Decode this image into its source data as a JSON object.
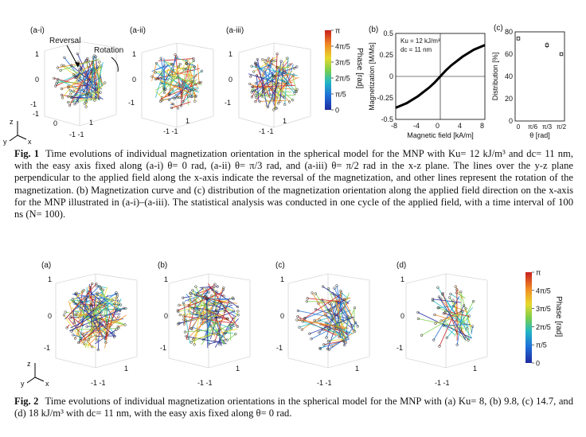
{
  "fig1": {
    "panels": [
      {
        "label": "(a-i)",
        "annotations": [
          "Reversal",
          "Rotation"
        ]
      },
      {
        "label": "(a-ii)"
      },
      {
        "label": "(a-iii)"
      }
    ],
    "axis_ticks": {
      "top": "1",
      "mid": "0",
      "bottom": "-1",
      "x_left": "-1",
      "x_right": "1",
      "floor_mid": "0",
      "floor_neg": "-1 -1"
    },
    "axis_letters": {
      "z": "z",
      "y": "y",
      "x": "x"
    },
    "colorbar": {
      "title": "Phase [rad]",
      "ticks": [
        "π",
        "4π/5",
        "3π/5",
        "2π/5",
        "π/5",
        "0"
      ]
    },
    "caption": {
      "label": "Fig. 1",
      "text": "Time evolutions of individual magnetization orientation in the spherical model for the MNP with Ku= 12 kJ/m³ and dc= 11 nm, with the easy axis fixed along (a-i) θ= 0 rad, (a-ii) θ= π/3 rad, and (a-iii) θ= π/2 rad in the x-z plane. The lines over the y-z plane perpendicular to the applied field along the x-axis indicate the reversal of the magnetization, and other lines represent the rotation of the magnetization. (b) Magnetization curve and (c) distribution of the magnetization orientation along the applied field direction on the x-axis for the MNP illustrated in (a-i)–(a-iii). The statistical analysis was conducted in one cycle of the applied field, with a time interval of 100 ns (N= 100)."
    }
  },
  "fig2": {
    "panels": [
      {
        "label": "(a)"
      },
      {
        "label": "(b)"
      },
      {
        "label": "(c)"
      },
      {
        "label": "(d)"
      }
    ],
    "caption": {
      "label": "Fig. 2",
      "text": "Time evolutions of individual magnetization orientations in the spherical model for the MNP with (a) Ku= 8, (b) 9.8, (c) 14.7, and (d) 18 kJ/m³ with dc= 11 nm, with the easy axis fixed along θ= 0 rad."
    }
  },
  "chart_data": [
    {
      "type": "line",
      "panel": "(b)",
      "xlabel": "Magnetic field [kA/m]",
      "ylabel": "Magnetization [M/Ms]",
      "xlim": [
        -8,
        8
      ],
      "ylim": [
        -0.5,
        0.5
      ],
      "xticks": [
        "-8",
        "-4",
        "0",
        "4",
        "8"
      ],
      "yticks": [
        "0.5",
        "0.25",
        "0",
        "-0.25",
        "-0.5"
      ],
      "annotations": [
        "Ku = 12 kJ/m³",
        "dc = 11 nm"
      ],
      "x": [
        -8,
        -6,
        -4,
        -2,
        -1,
        0,
        1,
        2,
        4,
        6,
        8
      ],
      "series": [
        {
          "values": [
            -0.365,
            -0.31,
            -0.23,
            -0.13,
            -0.07,
            0.0,
            0.07,
            0.13,
            0.23,
            0.31,
            0.365
          ]
        }
      ]
    },
    {
      "type": "scatter",
      "panel": "(c)",
      "xlabel": "θ [rad]",
      "ylabel": "Distribution [%]",
      "xlim": [
        0,
        1.5708
      ],
      "ylim": [
        0,
        80
      ],
      "xticks": [
        "0",
        "π/6",
        "π/3",
        "π/2"
      ],
      "yticks": [
        "80",
        "60",
        "40",
        "20",
        "0"
      ],
      "x": [
        0,
        1.0472,
        1.5708
      ],
      "series": [
        {
          "values": [
            74,
            68,
            60
          ],
          "errors": [
            1.5,
            2.5,
            1.5
          ]
        }
      ]
    }
  ]
}
